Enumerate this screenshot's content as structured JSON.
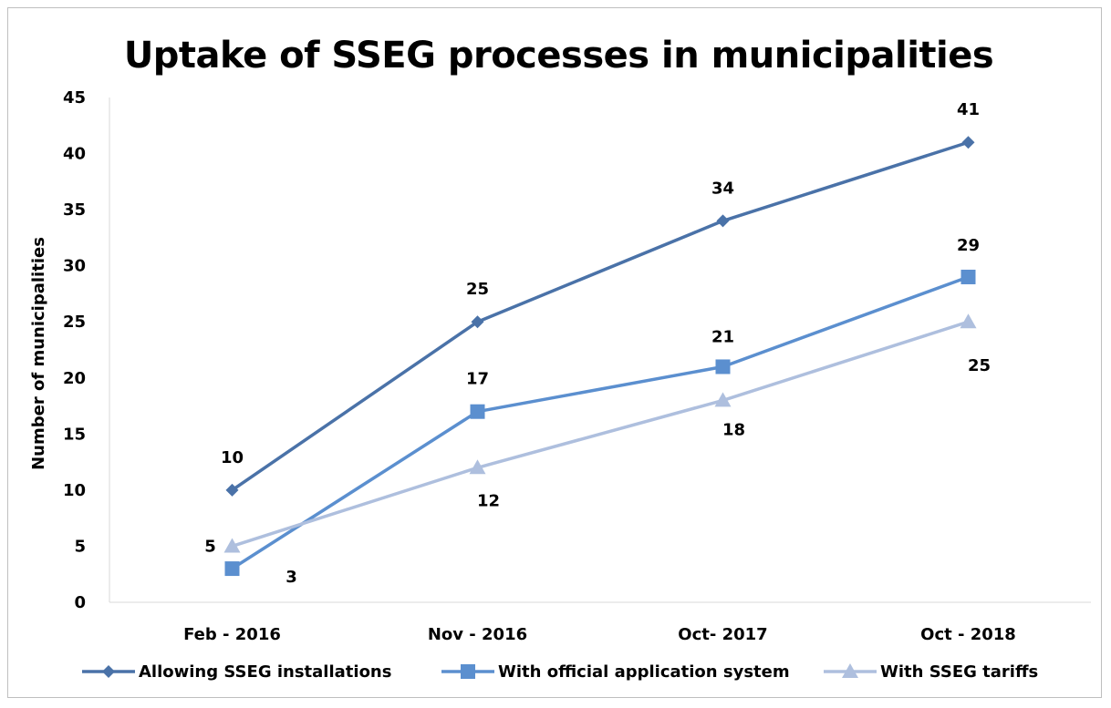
{
  "chart_data": {
    "type": "line",
    "title": "Uptake of SSEG processes in municipalities",
    "xlabel": "",
    "ylabel": "Number of municipalities",
    "categories": [
      "Feb - 2016",
      "Nov - 2016",
      "Oct- 2017",
      "Oct - 2018"
    ],
    "ylim": [
      0,
      45
    ],
    "yticks": [
      0,
      5,
      10,
      15,
      20,
      25,
      30,
      35,
      40,
      45
    ],
    "grid": false,
    "legend_position": "bottom",
    "series": [
      {
        "name": "Allowing SSEG installations",
        "values": [
          10,
          25,
          34,
          41
        ],
        "color": "#4a72a8",
        "marker": "diamond"
      },
      {
        "name": "With official application system",
        "values": [
          3,
          17,
          21,
          29
        ],
        "color": "#5b8fcf",
        "marker": "square"
      },
      {
        "name": "With SSEG tariffs",
        "values": [
          5,
          12,
          18,
          25
        ],
        "color": "#aebfde",
        "marker": "triangle"
      }
    ],
    "data_labels": [
      [
        "10",
        "25",
        "34",
        "41"
      ],
      [
        "3",
        "17",
        "21",
        "29"
      ],
      [
        "5",
        "12",
        "18",
        "25"
      ]
    ]
  }
}
